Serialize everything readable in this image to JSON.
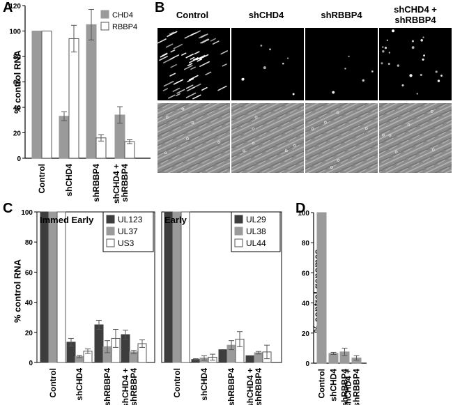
{
  "panels": {
    "a": "A",
    "b": "B",
    "c": "C",
    "d": "D"
  },
  "panel_b": {
    "columns": [
      "Control",
      "shCHD4",
      "shRBBP4",
      "shCHD4 +\nshRBBP4"
    ]
  },
  "colors": {
    "dark": "#3d3d3d",
    "mid": "#9a9a9a",
    "light": "#ffffff"
  },
  "chart_data": [
    {
      "id": "A",
      "type": "bar",
      "ylabel": "% control RNA",
      "ylim": [
        0,
        120
      ],
      "yticks": [
        0,
        20,
        40,
        60,
        80,
        100,
        120
      ],
      "categories": [
        "Control",
        "shCHD4",
        "shRBBP4",
        "shCHD4 +\nshRBBP4"
      ],
      "series": [
        {
          "name": "CHD4",
          "color": "#9a9a9a",
          "values": [
            100,
            33,
            105,
            34
          ],
          "errors": [
            0,
            3.5,
            12,
            6.5
          ]
        },
        {
          "name": "RBBP4",
          "color": "#ffffff",
          "values": [
            100,
            94,
            16,
            13
          ],
          "errors": [
            0,
            10.5,
            2.5,
            1.5
          ]
        }
      ],
      "legend": "top-right"
    },
    {
      "id": "C1",
      "type": "bar",
      "title": "Immed Early",
      "ylabel": "% control RNA",
      "ylim": [
        0,
        100
      ],
      "yticks": [
        0,
        20,
        40,
        60,
        80,
        100
      ],
      "categories": [
        "Control",
        "shCHD4",
        "shRBBP4",
        "shCHD4 +\nshRBBP4"
      ],
      "series": [
        {
          "name": "UL123",
          "color": "#3d3d3d",
          "values": [
            100,
            13.5,
            25,
            18.5
          ],
          "errors": [
            0,
            2.5,
            3,
            3
          ]
        },
        {
          "name": "UL37",
          "color": "#9a9a9a",
          "values": [
            100,
            4,
            10.5,
            7
          ],
          "errors": [
            0,
            0.8,
            4,
            1
          ]
        },
        {
          "name": "US3",
          "color": "#ffffff",
          "values": [
            100,
            7.5,
            16,
            12.5
          ],
          "errors": [
            0,
            1.5,
            6,
            2.5
          ]
        }
      ],
      "legend": "top-right"
    },
    {
      "id": "C2",
      "type": "bar",
      "title": "Early",
      "ylim": [
        0,
        100
      ],
      "categories": [
        "Control",
        "shCHD4",
        "shRBBP4",
        "shCHD4 +\nshRBBP4"
      ],
      "series": [
        {
          "name": "UL29",
          "color": "#3d3d3d",
          "values": [
            100,
            2,
            8.5,
            4.5
          ],
          "errors": [
            0,
            0.5,
            0,
            0
          ]
        },
        {
          "name": "UL38",
          "color": "#9a9a9a",
          "values": [
            100,
            3,
            11.5,
            6.5
          ],
          "errors": [
            0,
            1.5,
            3,
            0.8
          ]
        },
        {
          "name": "UL44",
          "color": "#ffffff",
          "values": [
            100,
            3.5,
            15.5,
            7
          ],
          "errors": [
            0,
            2,
            5,
            4.5
          ]
        }
      ],
      "legend": "top-right"
    },
    {
      "id": "D",
      "type": "bar",
      "ylabel": "% control genomes",
      "ylim": [
        0,
        100
      ],
      "yticks": [
        0,
        20,
        40,
        60,
        80,
        100
      ],
      "categories": [
        "Control",
        "shCHD4",
        "shRBBP4",
        "shCHD4 +\nshRBBP4"
      ],
      "series": [
        {
          "name": "",
          "color": "#9a9a9a",
          "values": [
            100,
            6.5,
            7.5,
            3.5
          ],
          "errors": [
            0,
            0.7,
            2.5,
            1.5
          ]
        }
      ]
    }
  ]
}
